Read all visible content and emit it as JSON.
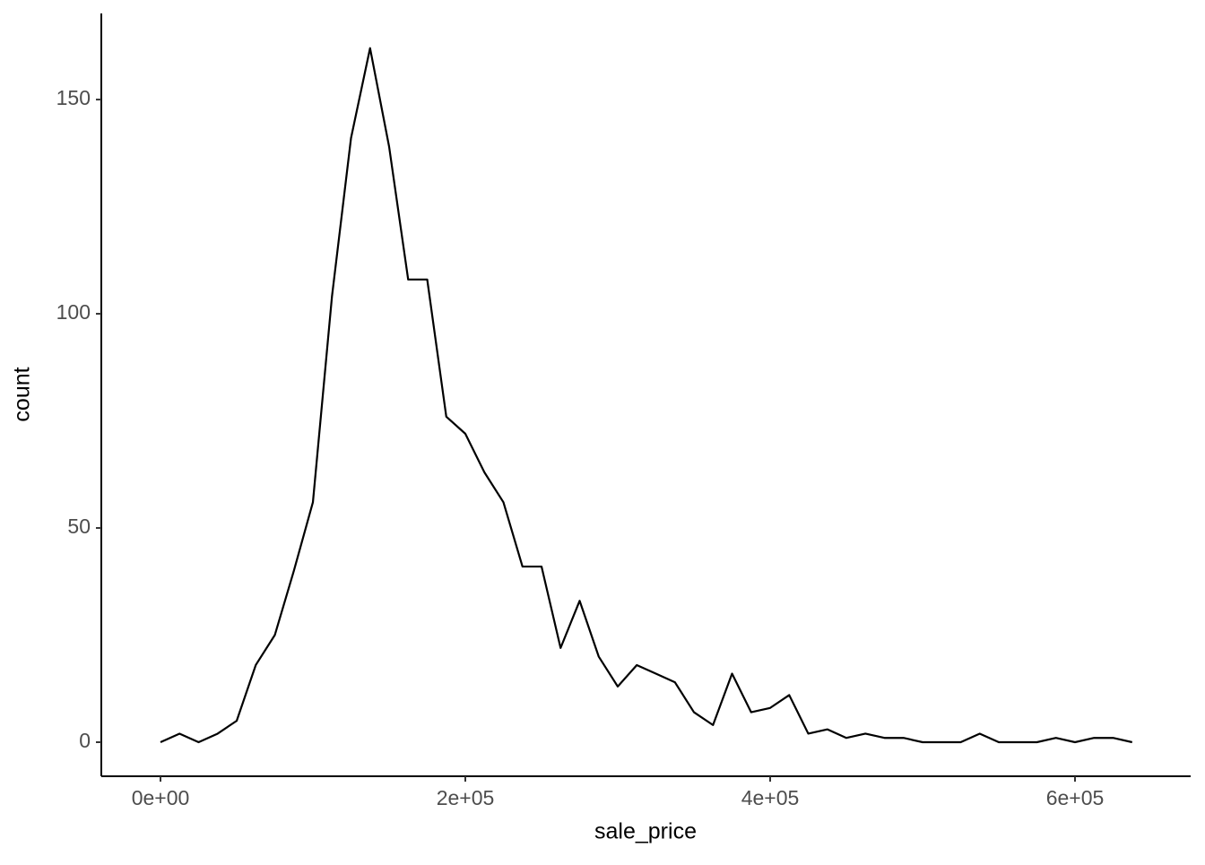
{
  "chart_data": {
    "type": "line",
    "x_label": "sale_price",
    "y_label": "count",
    "x": [
      0,
      12500,
      25000,
      37500,
      50000,
      62500,
      75000,
      87500,
      100000,
      112500,
      125000,
      137500,
      150000,
      162500,
      175000,
      187500,
      200000,
      212500,
      225000,
      237500,
      250000,
      262500,
      275000,
      287500,
      300000,
      312500,
      325000,
      337500,
      350000,
      362500,
      375000,
      387500,
      400000,
      412500,
      425000,
      437500,
      450000,
      462500,
      475000,
      487500,
      500000,
      512500,
      525000,
      537500,
      550000,
      562500,
      575000,
      587500,
      600000,
      612500,
      625000,
      637500
    ],
    "series": [
      {
        "color": "#000000",
        "values": [
          0,
          2,
          0,
          2,
          5,
          18,
          25,
          40,
          56,
          104,
          141,
          162,
          139,
          108,
          108,
          76,
          72,
          63,
          56,
          41,
          41,
          22,
          33,
          20,
          13,
          18,
          16,
          14,
          7,
          4,
          16,
          7,
          8,
          11,
          2,
          3,
          1,
          2,
          1,
          1,
          0,
          0,
          0,
          2,
          0,
          0,
          0,
          1,
          0,
          1,
          1,
          0
        ]
      }
    ],
    "xlim": [
      -38824,
      675882
    ],
    "ylim": [
      -7.95,
      170.1
    ],
    "xticks": [
      {
        "value": 0,
        "label": "0e+00"
      },
      {
        "value": 200000,
        "label": "2e+05"
      },
      {
        "value": 400000,
        "label": "4e+05"
      },
      {
        "value": 600000,
        "label": "6e+05"
      }
    ],
    "yticks": [
      0,
      50,
      100,
      150
    ],
    "grid": false
  }
}
